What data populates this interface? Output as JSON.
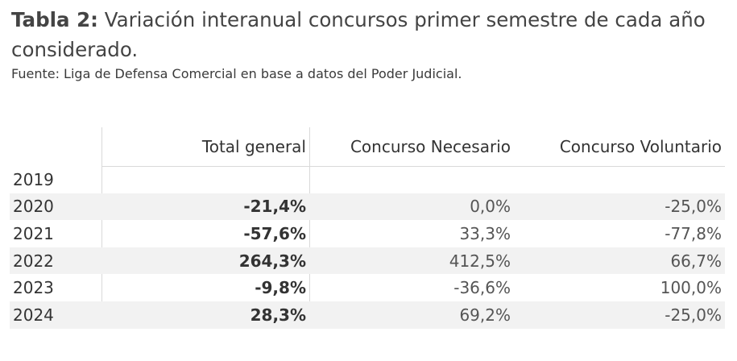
{
  "title": {
    "lead": "Tabla 2:",
    "text": "Variación interanual concursos primer semestre de cada año considerado."
  },
  "source": "Fuente: Liga de Defensa Comercial en base a datos del Poder Judicial.",
  "table": {
    "headers": [
      "",
      "Total general",
      "Concurso Necesario",
      "Concurso Voluntario"
    ],
    "rows": [
      {
        "year": "2019",
        "total": "",
        "necesario": "",
        "voluntario": ""
      },
      {
        "year": "2020",
        "total": "-21,4%",
        "necesario": "0,0%",
        "voluntario": "-25,0%"
      },
      {
        "year": "2021",
        "total": "-57,6%",
        "necesario": "33,3%",
        "voluntario": "-77,8%"
      },
      {
        "year": "2022",
        "total": "264,3%",
        "necesario": "412,5%",
        "voluntario": "66,7%"
      },
      {
        "year": "2023",
        "total": "-9,8%",
        "necesario": "-36,6%",
        "voluntario": "100,0%"
      },
      {
        "year": "2024",
        "total": "28,3%",
        "necesario": "69,2%",
        "voluntario": "-25,0%"
      }
    ]
  }
}
